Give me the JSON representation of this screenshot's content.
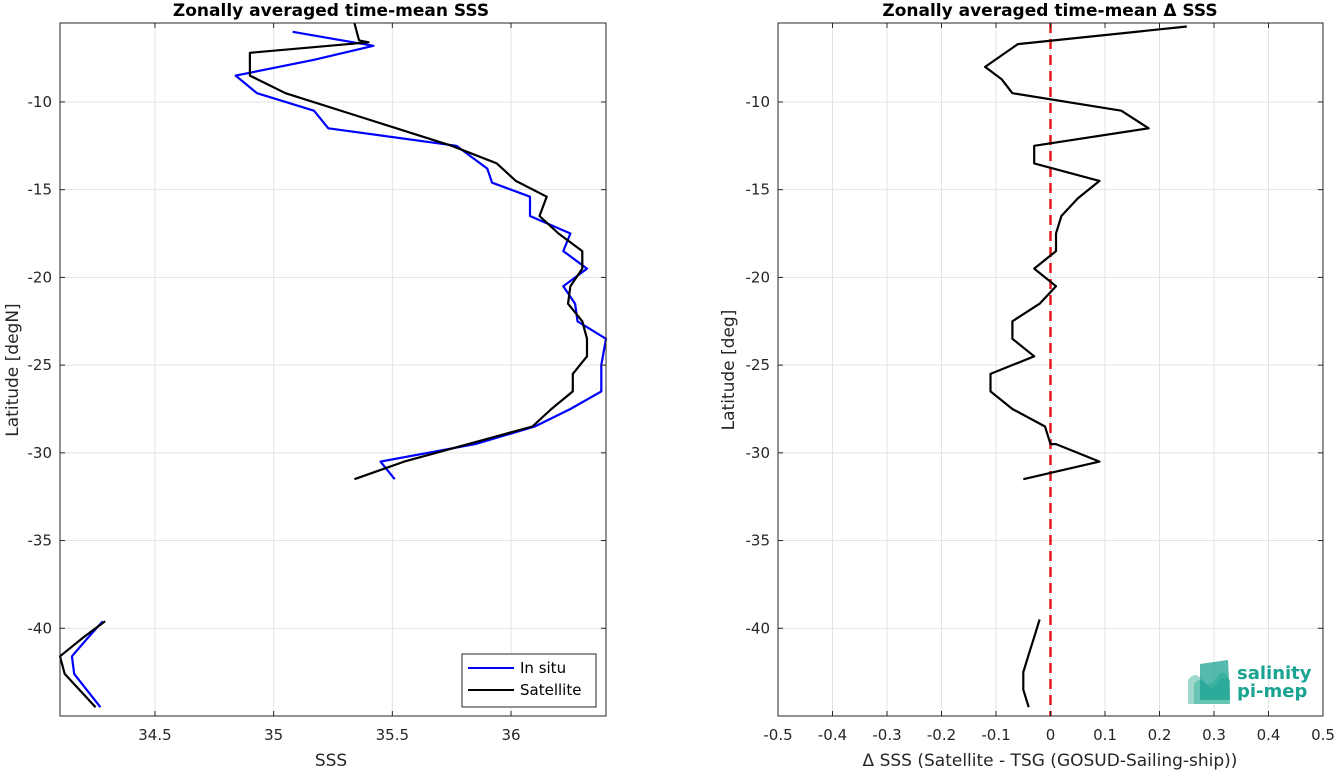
{
  "chart_data": [
    {
      "type": "line",
      "title": "Zonally averaged time-mean SSS",
      "xlabel": "SSS",
      "ylabel": "Latitude [degN]",
      "xlim": [
        34.1,
        36.4
      ],
      "ylim": [
        -45,
        -5.5
      ],
      "xticks": [
        34.5,
        35,
        35.5,
        36
      ],
      "yticks": [
        -40,
        -35,
        -30,
        -25,
        -20,
        -15,
        -10
      ],
      "xtick_labels": [
        "34.5",
        "35",
        "35.5",
        "36"
      ],
      "ytick_labels": [
        "-40",
        "-35",
        "-30",
        "-25",
        "-20",
        "-15",
        "-10"
      ],
      "grid": true,
      "legend": {
        "position": "bottom-right",
        "entries": [
          "In situ",
          "Satellite"
        ]
      },
      "series": [
        {
          "name": "In situ",
          "color": "#0000ff",
          "segments": [
            [
              [
                35.08,
                -6.0
              ],
              [
                35.42,
                -6.8
              ],
              [
                35.17,
                -7.6
              ],
              [
                34.84,
                -8.5
              ],
              [
                34.93,
                -9.5
              ],
              [
                35.17,
                -10.5
              ],
              [
                35.23,
                -11.5
              ],
              [
                35.77,
                -12.5
              ],
              [
                35.9,
                -13.8
              ],
              [
                35.92,
                -14.6
              ],
              [
                36.08,
                -15.4
              ],
              [
                36.08,
                -16.5
              ],
              [
                36.25,
                -17.5
              ],
              [
                36.22,
                -18.5
              ],
              [
                36.32,
                -19.5
              ],
              [
                36.22,
                -20.5
              ],
              [
                36.27,
                -21.5
              ],
              [
                36.28,
                -22.5
              ],
              [
                36.4,
                -23.5
              ],
              [
                36.38,
                -25.0
              ],
              [
                36.38,
                -26.5
              ],
              [
                36.25,
                -27.5
              ],
              [
                36.1,
                -28.5
              ],
              [
                35.85,
                -29.5
              ],
              [
                35.45,
                -30.5
              ],
              [
                35.51,
                -31.5
              ]
            ],
            [
              [
                34.28,
                -39.6
              ],
              [
                34.22,
                -40.5
              ],
              [
                34.15,
                -41.6
              ],
              [
                34.16,
                -42.6
              ],
              [
                34.27,
                -44.5
              ]
            ]
          ]
        },
        {
          "name": "Satellite",
          "color": "#000000",
          "segments": [
            [
              [
                35.34,
                -5.5
              ],
              [
                35.36,
                -6.5
              ],
              [
                35.4,
                -6.6
              ],
              [
                34.9,
                -7.2
              ],
              [
                34.9,
                -8.5
              ],
              [
                35.05,
                -9.5
              ],
              [
                35.4,
                -11.0
              ],
              [
                35.75,
                -12.5
              ],
              [
                35.94,
                -13.5
              ],
              [
                36.02,
                -14.5
              ],
              [
                36.15,
                -15.4
              ],
              [
                36.12,
                -16.5
              ],
              [
                36.2,
                -17.5
              ],
              [
                36.3,
                -18.5
              ],
              [
                36.3,
                -19.5
              ],
              [
                36.25,
                -20.5
              ],
              [
                36.24,
                -21.5
              ],
              [
                36.3,
                -22.5
              ],
              [
                36.32,
                -23.5
              ],
              [
                36.32,
                -24.5
              ],
              [
                36.26,
                -25.5
              ],
              [
                36.26,
                -26.5
              ],
              [
                36.17,
                -27.5
              ],
              [
                36.09,
                -28.5
              ],
              [
                35.82,
                -29.5
              ],
              [
                35.55,
                -30.5
              ],
              [
                35.34,
                -31.5
              ]
            ],
            [
              [
                34.29,
                -39.6
              ],
              [
                34.2,
                -40.5
              ],
              [
                34.1,
                -41.6
              ],
              [
                34.12,
                -42.6
              ],
              [
                34.25,
                -44.5
              ]
            ]
          ]
        }
      ]
    },
    {
      "type": "line",
      "title": "Zonally averaged time-mean Δ SSS",
      "xlabel": "Δ SSS (Satellite - TSG (GOSUD-Sailing-ship))",
      "ylabel": "Latitude [deg]",
      "xlim": [
        -0.5,
        0.5
      ],
      "ylim": [
        -45,
        -5.5
      ],
      "xticks": [
        -0.5,
        -0.4,
        -0.3,
        -0.2,
        -0.1,
        0,
        0.1,
        0.2,
        0.3,
        0.4,
        0.5
      ],
      "yticks": [
        -40,
        -35,
        -30,
        -25,
        -20,
        -15,
        -10
      ],
      "xtick_labels": [
        "-0.5",
        "-0.4",
        "-0.3",
        "-0.2",
        "-0.1",
        "0",
        "0.1",
        "0.2",
        "0.3",
        "0.4",
        "0.5"
      ],
      "ytick_labels": [
        "-40",
        "-35",
        "-30",
        "-25",
        "-20",
        "-15",
        "-10"
      ],
      "grid": true,
      "reference_line": {
        "x": 0,
        "color": "#e41a1c",
        "style": "dashed"
      },
      "series": [
        {
          "color": "#000000",
          "segments": [
            [
              [
                0.25,
                -5.7
              ],
              [
                -0.06,
                -6.7
              ],
              [
                -0.12,
                -8.0
              ],
              [
                -0.09,
                -8.7
              ],
              [
                -0.07,
                -9.5
              ],
              [
                0.13,
                -10.5
              ],
              [
                0.18,
                -11.5
              ],
              [
                -0.03,
                -12.5
              ],
              [
                -0.03,
                -13.5
              ],
              [
                0.09,
                -14.5
              ],
              [
                0.05,
                -15.5
              ],
              [
                0.02,
                -16.5
              ],
              [
                0.01,
                -17.5
              ],
              [
                0.01,
                -18.5
              ],
              [
                -0.03,
                -19.5
              ],
              [
                0.01,
                -20.5
              ],
              [
                -0.02,
                -21.5
              ],
              [
                -0.07,
                -22.5
              ],
              [
                -0.07,
                -23.5
              ],
              [
                -0.03,
                -24.5
              ],
              [
                -0.11,
                -25.5
              ],
              [
                -0.11,
                -26.5
              ],
              [
                -0.07,
                -27.5
              ],
              [
                -0.01,
                -28.5
              ],
              [
                0.0,
                -29.5
              ],
              [
                0.01,
                -29.5
              ],
              [
                0.09,
                -30.5
              ],
              [
                -0.05,
                -31.5
              ]
            ],
            [
              [
                -0.02,
                -39.5
              ],
              [
                -0.03,
                -40.5
              ],
              [
                -0.04,
                -41.5
              ],
              [
                -0.05,
                -42.5
              ],
              [
                -0.05,
                -43.5
              ],
              [
                -0.04,
                -44.5
              ]
            ]
          ]
        }
      ]
    }
  ],
  "logo": {
    "line1": "salinity",
    "line2": "pi-mep",
    "colors": {
      "text": "#1aa391",
      "wave_light": "#9fd9cc",
      "wave_dark": "#1aa391"
    }
  }
}
